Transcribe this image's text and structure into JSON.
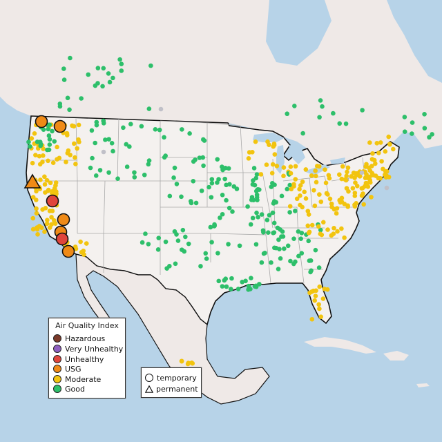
{
  "legend": {
    "title": "Air Quality Index",
    "categories": [
      {
        "label": "Hazardous",
        "color": "#7b3a2a"
      },
      {
        "label": "Very Unhealthy",
        "color": "#8e5fc0"
      },
      {
        "label": "Unhealthy",
        "color": "#e0453c"
      },
      {
        "label": "USG",
        "color": "#ef8a17"
      },
      {
        "label": "Moderate",
        "color": "#f2c40f"
      },
      {
        "label": "Good",
        "color": "#2dbf6a"
      }
    ]
  },
  "shape_legend": {
    "temporary": "temporary",
    "permanent": "permanent"
  },
  "colors": {
    "water": "#b7d3e8",
    "land": "#f0ecea",
    "us_land": "#f4f2f0",
    "state_border": "#a8a8a8",
    "country_border": "#111111",
    "no_data": "#c0c0c8"
  },
  "icons": [
    "circle-marker-icon",
    "triangle-marker-icon"
  ]
}
